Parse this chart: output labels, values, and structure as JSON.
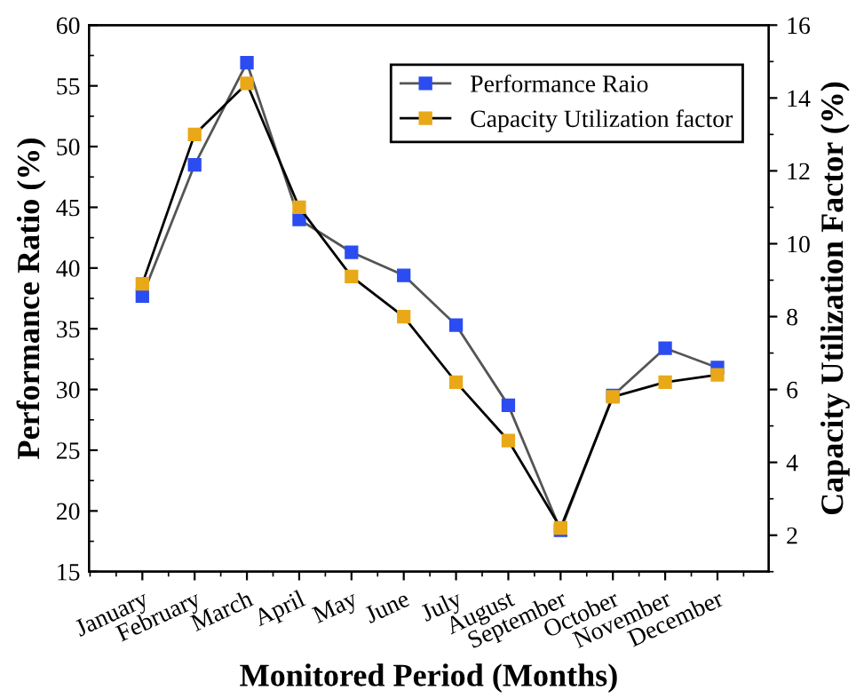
{
  "chart_data": {
    "type": "line",
    "xlabel": "Monitored Period (Months)",
    "ylabel": "Performance Ratio (%)",
    "y2label": "Capacity Utilization Factor (%)",
    "categories": [
      "January",
      "February",
      "March",
      "April",
      "May",
      "June",
      "July",
      "August",
      "September",
      "October",
      "November",
      "December"
    ],
    "series": [
      {
        "name": "Performance Raio",
        "color": "#2b4cf0",
        "values": [
          37.7,
          48.5,
          56.9,
          44.0,
          41.3,
          39.4,
          35.3,
          28.7,
          18.4,
          29.5,
          33.4,
          31.8
        ]
      },
      {
        "name": "Capacity Utilization factor",
        "color": "#e8a818",
        "axis": "y2",
        "values": [
          8.9,
          13.0,
          14.4,
          11.0,
          9.1,
          8.0,
          6.2,
          4.6,
          2.2,
          5.8,
          6.2,
          6.4
        ]
      }
    ],
    "ylim": [
      15,
      60
    ],
    "yticks": [
      15,
      20,
      25,
      30,
      35,
      40,
      45,
      50,
      55,
      60
    ],
    "y2lim": [
      1,
      16
    ],
    "y2ticks": [
      2,
      4,
      6,
      8,
      10,
      12,
      14,
      16
    ],
    "marker": "square",
    "line_style": "solid",
    "legend": "top right",
    "grid": false
  }
}
